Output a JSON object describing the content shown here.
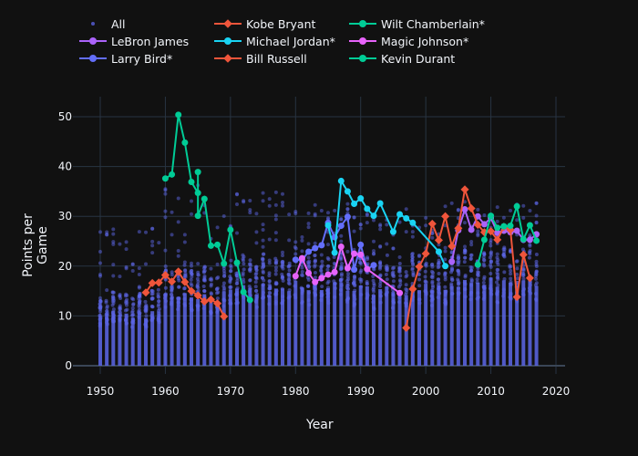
{
  "chart_data": {
    "type": "line",
    "title": "",
    "xlabel": "Year",
    "ylabel": "Points per Game",
    "xlim": [
      1945.5,
      2021.5
    ],
    "ylim": [
      -1.7,
      54
    ],
    "x_ticks": [
      1950,
      1960,
      1970,
      1980,
      1990,
      2000,
      2010,
      2020
    ],
    "y_ticks": [
      0,
      10,
      20,
      30,
      40,
      50
    ],
    "grid": true,
    "legend_placement": "top",
    "all_scatter": {
      "name": "All",
      "color": "#636efa",
      "year_start": 1950,
      "year_end": 2017,
      "dense_top_by_decade": {
        "1950": 15,
        "1960": 20,
        "1970": 22,
        "1980": 23,
        "1990": 22,
        "2000": 23,
        "2010": 24
      },
      "max_outlier_by_decade": {
        "1950": 28,
        "1960": 38,
        "1970": 35,
        "1980": 33,
        "1990": 32,
        "2000": 33,
        "2010": 33
      }
    },
    "series": [
      {
        "name": "LeBron James",
        "color": "#ab63fa",
        "marker": "circle",
        "x": [
          2004,
          2005,
          2006,
          2007,
          2008,
          2009,
          2010,
          2011,
          2012,
          2013,
          2014,
          2015,
          2016,
          2017
        ],
        "y": [
          20.9,
          27.2,
          31.4,
          27.3,
          30.0,
          28.4,
          29.7,
          26.7,
          27.1,
          26.8,
          27.1,
          25.3,
          25.3,
          26.4
        ]
      },
      {
        "name": "Larry Bird*",
        "color": "#636efa",
        "marker": "circle",
        "x": [
          1980,
          1981,
          1982,
          1983,
          1984,
          1985,
          1986,
          1987,
          1988,
          1989,
          1990,
          1991,
          1992
        ],
        "y": [
          21.3,
          21.2,
          22.9,
          23.6,
          24.2,
          28.7,
          25.8,
          28.1,
          29.9,
          19.3,
          24.3,
          19.4,
          20.2
        ]
      },
      {
        "name": "Kobe Bryant",
        "color": "#ef553b",
        "marker": "diamond",
        "x": [
          1997,
          1998,
          1999,
          2000,
          2001,
          2002,
          2003,
          2004,
          2005,
          2006,
          2007,
          2008,
          2009,
          2010,
          2011,
          2012,
          2013,
          2014,
          2015,
          2016
        ],
        "y": [
          7.6,
          15.4,
          19.9,
          22.5,
          28.5,
          25.2,
          30.0,
          24.0,
          27.6,
          35.4,
          31.6,
          28.3,
          26.8,
          27.0,
          25.3,
          27.9,
          27.3,
          13.8,
          22.3,
          17.6
        ]
      },
      {
        "name": "Michael Jordan*",
        "color": "#19d3f3",
        "marker": "circle",
        "x": [
          1985,
          1986,
          1987,
          1988,
          1989,
          1990,
          1991,
          1992,
          1993,
          1995,
          1996,
          1997,
          1998,
          2002,
          2003
        ],
        "y": [
          28.2,
          22.7,
          37.1,
          35.0,
          32.5,
          33.6,
          31.5,
          30.1,
          32.6,
          26.9,
          30.4,
          29.6,
          28.7,
          22.9,
          20.0
        ]
      },
      {
        "name": "Bill Russell",
        "color": "#ef553b",
        "marker": "diamond",
        "x": [
          1957,
          1958,
          1959,
          1960,
          1961,
          1962,
          1963,
          1964,
          1965,
          1966,
          1967,
          1968,
          1969
        ],
        "y": [
          14.7,
          16.6,
          16.7,
          18.2,
          16.9,
          18.9,
          16.8,
          15.0,
          14.1,
          12.9,
          13.3,
          12.5,
          9.9
        ]
      },
      {
        "name": "Wilt Chamberlain*",
        "color": "#00cc96",
        "marker": "circle",
        "x": [
          1960,
          1961,
          1962,
          1963,
          1964,
          1965,
          1965,
          1965,
          1966,
          1967,
          1968,
          1969,
          1970,
          1971,
          1972,
          1973
        ],
        "y": [
          37.6,
          38.4,
          50.4,
          44.8,
          36.9,
          34.7,
          38.9,
          30.1,
          33.5,
          24.1,
          24.3,
          20.5,
          27.3,
          20.7,
          14.8,
          13.2
        ]
      },
      {
        "name": "Magic Johnson*",
        "color": "#e763fa",
        "marker": "circle",
        "x": [
          1980,
          1981,
          1982,
          1983,
          1984,
          1985,
          1986,
          1987,
          1988,
          1989,
          1990,
          1991,
          1996
        ],
        "y": [
          18.0,
          21.6,
          18.6,
          16.8,
          17.6,
          18.3,
          18.8,
          23.9,
          19.6,
          22.5,
          22.3,
          19.4,
          14.6
        ]
      },
      {
        "name": "Kevin Durant",
        "color": "#00cc96",
        "marker": "circle",
        "x": [
          2008,
          2009,
          2010,
          2011,
          2012,
          2013,
          2014,
          2015,
          2016,
          2017
        ],
        "y": [
          20.3,
          25.3,
          30.1,
          27.7,
          28.0,
          28.1,
          32.0,
          25.4,
          28.2,
          25.1
        ]
      }
    ]
  },
  "legend": {
    "items": [
      {
        "label": "All",
        "color": "#636efa",
        "kind": "scatter"
      },
      {
        "label": "LeBron James",
        "color": "#ab63fa",
        "kind": "line"
      },
      {
        "label": "Larry Bird*",
        "color": "#636efa",
        "kind": "line"
      },
      {
        "label": "Kobe Bryant",
        "color": "#ef553b",
        "kind": "line-diamond"
      },
      {
        "label": "Michael Jordan*",
        "color": "#19d3f3",
        "kind": "line"
      },
      {
        "label": "Bill Russell",
        "color": "#ef553b",
        "kind": "line-diamond"
      },
      {
        "label": "Wilt Chamberlain*",
        "color": "#00cc96",
        "kind": "line"
      },
      {
        "label": "Magic Johnson*",
        "color": "#e763fa",
        "kind": "line"
      },
      {
        "label": "Kevin Durant",
        "color": "#00cc96",
        "kind": "line"
      }
    ]
  },
  "axes": {
    "x_title": "Year",
    "y_title": "Points per Game"
  }
}
